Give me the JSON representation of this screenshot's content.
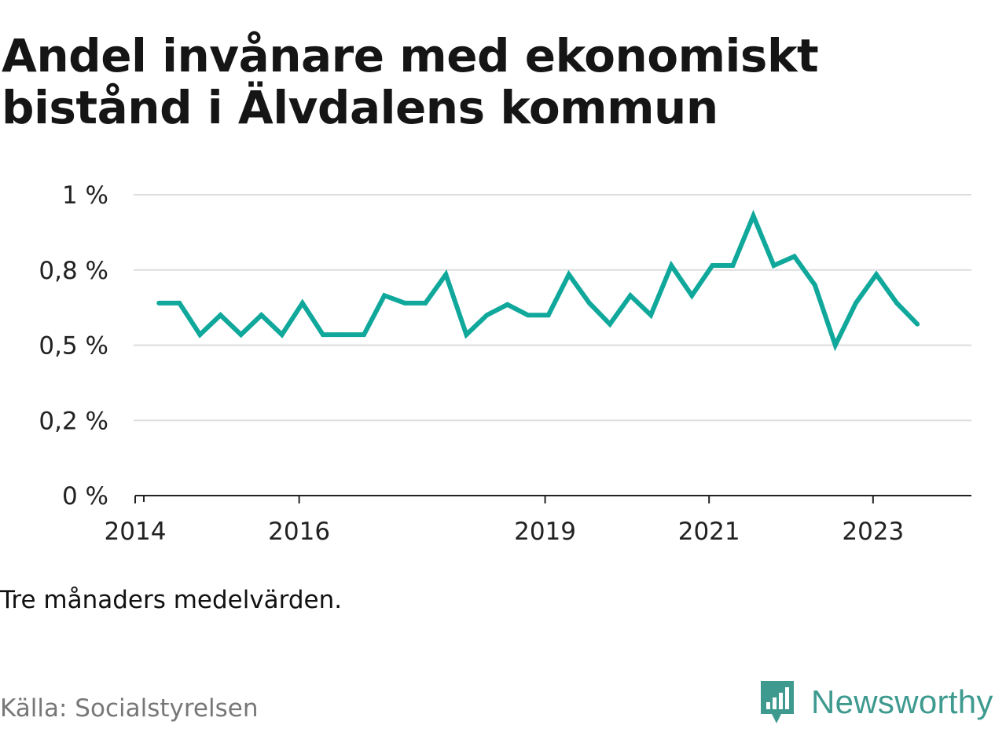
{
  "title": "Andel invånare med ekonomiskt bistånd i Älvdalens kommun",
  "note": "Tre månaders medelvärden.",
  "source": "Källa: Socialstyrelsen",
  "brand": {
    "name": "Newsworthy",
    "icon": "newsworthy-logo-icon",
    "color": "#3e9a8f"
  },
  "colors": {
    "line": "#11a89c",
    "grid": "#dddddd",
    "axis": "#222222"
  },
  "chart_data": {
    "type": "line",
    "title": "Andel invånare med ekonomiskt bistånd i Älvdalens kommun",
    "xlabel": "",
    "ylabel": "",
    "ylim": [
      0,
      1
    ],
    "yticks": [
      {
        "value": 0,
        "label": "0 %"
      },
      {
        "value": 0.25,
        "label": "0,2 %"
      },
      {
        "value": 0.5,
        "label": "0,5 %"
      },
      {
        "value": 0.75,
        "label": "0,8 %"
      },
      {
        "value": 1,
        "label": "1 %"
      }
    ],
    "xlim": [
      2014.0,
      2024.2
    ],
    "xticks": [
      {
        "value": 2014,
        "label": "2014"
      },
      {
        "value": 2016,
        "label": "2016"
      },
      {
        "value": 2019,
        "label": "2019"
      },
      {
        "value": 2021,
        "label": "2021"
      },
      {
        "value": 2023,
        "label": "2023"
      }
    ],
    "grid": true,
    "series": [
      {
        "x": [
          2014.29,
          2014.54,
          2014.79,
          2015.04,
          2015.29,
          2015.54,
          2015.79,
          2016.04,
          2016.29,
          2016.54,
          2016.79,
          2017.04,
          2017.29,
          2017.54,
          2017.79,
          2018.04,
          2018.29,
          2018.54,
          2018.79,
          2019.04,
          2019.29,
          2019.54,
          2019.79,
          2020.04,
          2020.29,
          2020.54,
          2020.79,
          2021.04,
          2021.29,
          2021.54,
          2021.79,
          2022.04,
          2022.29,
          2022.54,
          2022.79,
          2023.04,
          2023.29,
          2023.54
        ],
        "values": [
          0.64,
          0.64,
          0.535,
          0.6,
          0.535,
          0.6,
          0.535,
          0.64,
          0.535,
          0.535,
          0.535,
          0.665,
          0.64,
          0.64,
          0.735,
          0.535,
          0.6,
          0.635,
          0.6,
          0.6,
          0.735,
          0.64,
          0.57,
          0.665,
          0.6,
          0.765,
          0.665,
          0.765,
          0.765,
          0.93,
          0.765,
          0.795,
          0.7,
          0.5,
          0.64,
          0.735,
          0.64,
          0.57
        ]
      }
    ]
  }
}
